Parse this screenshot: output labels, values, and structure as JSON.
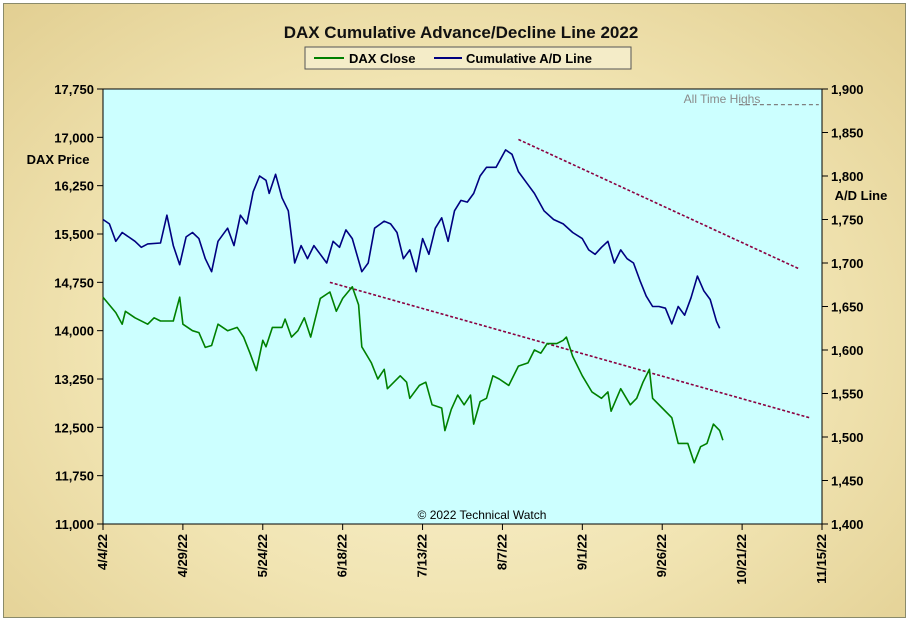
{
  "chart_data": {
    "type": "line",
    "title": "DAX Cumulative Advance/Decline Line 2022",
    "y_left_label": "DAX Price",
    "y_right_label": "A/D Line",
    "y_left_lim": [
      11000,
      17750
    ],
    "y_right_lim": [
      1400,
      1900
    ],
    "y_left_ticks": [
      "17,750",
      "17,000",
      "16,250",
      "15,500",
      "14,750",
      "14,000",
      "13,250",
      "12,500",
      "11,750",
      "11,000"
    ],
    "y_left_tick_values": [
      17750,
      17000,
      16250,
      15500,
      14750,
      14000,
      13250,
      12500,
      11750,
      11000
    ],
    "y_right_ticks": [
      "1,900",
      "1,850",
      "1,800",
      "1,750",
      "1,700",
      "1,650",
      "1,600",
      "1,550",
      "1,500",
      "1,450",
      "1,400"
    ],
    "y_right_tick_values": [
      1900,
      1850,
      1800,
      1750,
      1700,
      1650,
      1600,
      1550,
      1500,
      1450,
      1400
    ],
    "x_ticks": [
      "4/4/22",
      "4/29/22",
      "5/24/22",
      "6/18/22",
      "7/13/22",
      "8/7/22",
      "9/1/22",
      "9/26/22",
      "10/21/22",
      "11/15/22"
    ],
    "x_tick_dates": [
      "2022-04-04",
      "2022-04-29",
      "2022-05-24",
      "2022-06-18",
      "2022-07-13",
      "2022-08-07",
      "2022-09-01",
      "2022-09-26",
      "2022-10-21",
      "2022-11-15"
    ],
    "x_range": [
      "2022-04-04",
      "2022-11-15"
    ],
    "legend": {
      "position": "top-center",
      "entries": [
        "DAX Close",
        "Cumulative A/D Line"
      ]
    },
    "colors": {
      "plot_bg": "#ccffff",
      "dax": "#008000",
      "ad": "#000080",
      "trend": "#8b0040",
      "ath": "#808080"
    },
    "annotations": {
      "ath_label": "All Time Highs",
      "copyright": "© 2022 Technical Watch"
    },
    "series": [
      {
        "name": "DAX Close",
        "axis": "left",
        "points": [
          [
            "2022-04-04",
            14520
          ],
          [
            "2022-04-08",
            14280
          ],
          [
            "2022-04-10",
            14100
          ],
          [
            "2022-04-11",
            14300
          ],
          [
            "2022-04-14",
            14200
          ],
          [
            "2022-04-18",
            14100
          ],
          [
            "2022-04-20",
            14200
          ],
          [
            "2022-04-22",
            14150
          ],
          [
            "2022-04-26",
            14150
          ],
          [
            "2022-04-28",
            14520
          ],
          [
            "2022-04-29",
            14100
          ],
          [
            "2022-05-02",
            14000
          ],
          [
            "2022-05-04",
            13970
          ],
          [
            "2022-05-06",
            13740
          ],
          [
            "2022-05-08",
            13770
          ],
          [
            "2022-05-10",
            14100
          ],
          [
            "2022-05-13",
            14000
          ],
          [
            "2022-05-16",
            14050
          ],
          [
            "2022-05-18",
            13900
          ],
          [
            "2022-05-20",
            13650
          ],
          [
            "2022-05-22",
            13380
          ],
          [
            "2022-05-24",
            13850
          ],
          [
            "2022-05-25",
            13750
          ],
          [
            "2022-05-27",
            14050
          ],
          [
            "2022-05-30",
            14050
          ],
          [
            "2022-05-31",
            14180
          ],
          [
            "2022-06-02",
            13900
          ],
          [
            "2022-06-04",
            14000
          ],
          [
            "2022-06-06",
            14200
          ],
          [
            "2022-06-08",
            13900
          ],
          [
            "2022-06-11",
            14500
          ],
          [
            "2022-06-14",
            14600
          ],
          [
            "2022-06-16",
            14300
          ],
          [
            "2022-06-18",
            14500
          ],
          [
            "2022-06-21",
            14680
          ],
          [
            "2022-06-23",
            14400
          ],
          [
            "2022-06-24",
            13750
          ],
          [
            "2022-06-27",
            13500
          ],
          [
            "2022-06-29",
            13250
          ],
          [
            "2022-07-01",
            13400
          ],
          [
            "2022-07-02",
            13100
          ],
          [
            "2022-07-06",
            13300
          ],
          [
            "2022-07-08",
            13200
          ],
          [
            "2022-07-09",
            12950
          ],
          [
            "2022-07-12",
            13150
          ],
          [
            "2022-07-14",
            13200
          ],
          [
            "2022-07-16",
            12850
          ],
          [
            "2022-07-19",
            12800
          ],
          [
            "2022-07-20",
            12450
          ],
          [
            "2022-07-22",
            12780
          ],
          [
            "2022-07-24",
            13000
          ],
          [
            "2022-07-26",
            12850
          ],
          [
            "2022-07-28",
            13000
          ],
          [
            "2022-07-29",
            12550
          ],
          [
            "2022-07-31",
            12900
          ],
          [
            "2022-08-02",
            12950
          ],
          [
            "2022-08-04",
            13300
          ],
          [
            "2022-08-06",
            13250
          ],
          [
            "2022-08-09",
            13150
          ],
          [
            "2022-08-12",
            13450
          ],
          [
            "2022-08-15",
            13500
          ],
          [
            "2022-08-17",
            13700
          ],
          [
            "2022-08-19",
            13650
          ],
          [
            "2022-08-21",
            13800
          ],
          [
            "2022-08-24",
            13800
          ],
          [
            "2022-08-26",
            13850
          ],
          [
            "2022-08-27",
            13900
          ],
          [
            "2022-08-29",
            13600
          ],
          [
            "2022-09-01",
            13300
          ],
          [
            "2022-09-04",
            13050
          ],
          [
            "2022-09-07",
            12950
          ],
          [
            "2022-09-09",
            13050
          ],
          [
            "2022-09-10",
            12750
          ],
          [
            "2022-09-13",
            13100
          ],
          [
            "2022-09-16",
            12850
          ],
          [
            "2022-09-18",
            12950
          ],
          [
            "2022-09-20",
            13200
          ],
          [
            "2022-09-22",
            13400
          ],
          [
            "2022-09-23",
            12950
          ],
          [
            "2022-09-26",
            12800
          ],
          [
            "2022-09-29",
            12650
          ],
          [
            "2022-10-01",
            12250
          ],
          [
            "2022-10-04",
            12250
          ],
          [
            "2022-10-06",
            11950
          ],
          [
            "2022-10-08",
            12200
          ],
          [
            "2022-10-10",
            12250
          ],
          [
            "2022-10-12",
            12550
          ],
          [
            "2022-10-14",
            12450
          ],
          [
            "2022-10-15",
            12300
          ]
        ]
      },
      {
        "name": "Cumulative A/D Line",
        "axis": "right",
        "points": [
          [
            "2022-04-04",
            1750
          ],
          [
            "2022-04-06",
            1745
          ],
          [
            "2022-04-08",
            1725
          ],
          [
            "2022-04-10",
            1735
          ],
          [
            "2022-04-12",
            1730
          ],
          [
            "2022-04-14",
            1725
          ],
          [
            "2022-04-16",
            1718
          ],
          [
            "2022-04-18",
            1722
          ],
          [
            "2022-04-22",
            1723
          ],
          [
            "2022-04-24",
            1755
          ],
          [
            "2022-04-26",
            1720
          ],
          [
            "2022-04-28",
            1698
          ],
          [
            "2022-04-30",
            1730
          ],
          [
            "2022-05-02",
            1735
          ],
          [
            "2022-05-04",
            1728
          ],
          [
            "2022-05-06",
            1705
          ],
          [
            "2022-05-08",
            1690
          ],
          [
            "2022-05-10",
            1725
          ],
          [
            "2022-05-13",
            1740
          ],
          [
            "2022-05-15",
            1720
          ],
          [
            "2022-05-17",
            1755
          ],
          [
            "2022-05-19",
            1745
          ],
          [
            "2022-05-21",
            1782
          ],
          [
            "2022-05-23",
            1800
          ],
          [
            "2022-05-25",
            1795
          ],
          [
            "2022-05-26",
            1780
          ],
          [
            "2022-05-28",
            1802
          ],
          [
            "2022-05-30",
            1775
          ],
          [
            "2022-06-01",
            1760
          ],
          [
            "2022-06-03",
            1700
          ],
          [
            "2022-06-05",
            1720
          ],
          [
            "2022-06-07",
            1705
          ],
          [
            "2022-06-09",
            1720
          ],
          [
            "2022-06-11",
            1710
          ],
          [
            "2022-06-13",
            1700
          ],
          [
            "2022-06-15",
            1725
          ],
          [
            "2022-06-17",
            1718
          ],
          [
            "2022-06-19",
            1738
          ],
          [
            "2022-06-21",
            1728
          ],
          [
            "2022-06-24",
            1690
          ],
          [
            "2022-06-26",
            1700
          ],
          [
            "2022-06-28",
            1740
          ],
          [
            "2022-07-01",
            1748
          ],
          [
            "2022-07-03",
            1745
          ],
          [
            "2022-07-05",
            1735
          ],
          [
            "2022-07-07",
            1705
          ],
          [
            "2022-07-09",
            1715
          ],
          [
            "2022-07-11",
            1690
          ],
          [
            "2022-07-13",
            1728
          ],
          [
            "2022-07-15",
            1710
          ],
          [
            "2022-07-17",
            1740
          ],
          [
            "2022-07-19",
            1752
          ],
          [
            "2022-07-21",
            1725
          ],
          [
            "2022-07-23",
            1760
          ],
          [
            "2022-07-25",
            1772
          ],
          [
            "2022-07-27",
            1770
          ],
          [
            "2022-07-29",
            1780
          ],
          [
            "2022-07-31",
            1800
          ],
          [
            "2022-08-02",
            1810
          ],
          [
            "2022-08-05",
            1810
          ],
          [
            "2022-08-08",
            1830
          ],
          [
            "2022-08-10",
            1825
          ],
          [
            "2022-08-12",
            1805
          ],
          [
            "2022-08-15",
            1790
          ],
          [
            "2022-08-17",
            1780
          ],
          [
            "2022-08-20",
            1760
          ],
          [
            "2022-08-23",
            1750
          ],
          [
            "2022-08-26",
            1745
          ],
          [
            "2022-08-29",
            1735
          ],
          [
            "2022-09-01",
            1728
          ],
          [
            "2022-09-03",
            1715
          ],
          [
            "2022-09-05",
            1710
          ],
          [
            "2022-09-07",
            1718
          ],
          [
            "2022-09-09",
            1725
          ],
          [
            "2022-09-11",
            1700
          ],
          [
            "2022-09-13",
            1715
          ],
          [
            "2022-09-15",
            1705
          ],
          [
            "2022-09-17",
            1700
          ],
          [
            "2022-09-19",
            1680
          ],
          [
            "2022-09-21",
            1662
          ],
          [
            "2022-09-23",
            1650
          ],
          [
            "2022-09-25",
            1650
          ],
          [
            "2022-09-27",
            1648
          ],
          [
            "2022-09-29",
            1630
          ],
          [
            "2022-10-01",
            1650
          ],
          [
            "2022-10-03",
            1640
          ],
          [
            "2022-10-05",
            1660
          ],
          [
            "2022-10-07",
            1685
          ],
          [
            "2022-10-09",
            1668
          ],
          [
            "2022-10-11",
            1658
          ],
          [
            "2022-10-13",
            1633
          ],
          [
            "2022-10-14",
            1625
          ]
        ]
      }
    ],
    "trendlines": [
      {
        "axis": "left",
        "from": [
          "2022-06-14",
          14750
        ],
        "to": [
          "2022-11-11",
          12650
        ]
      },
      {
        "axis": "right",
        "from": [
          "2022-08-12",
          1842
        ],
        "to": [
          "2022-11-08",
          1693
        ]
      }
    ],
    "ath_line": {
      "axis": "right",
      "from": "2022-10-20",
      "to": "2022-11-14",
      "value": 1882
    }
  }
}
